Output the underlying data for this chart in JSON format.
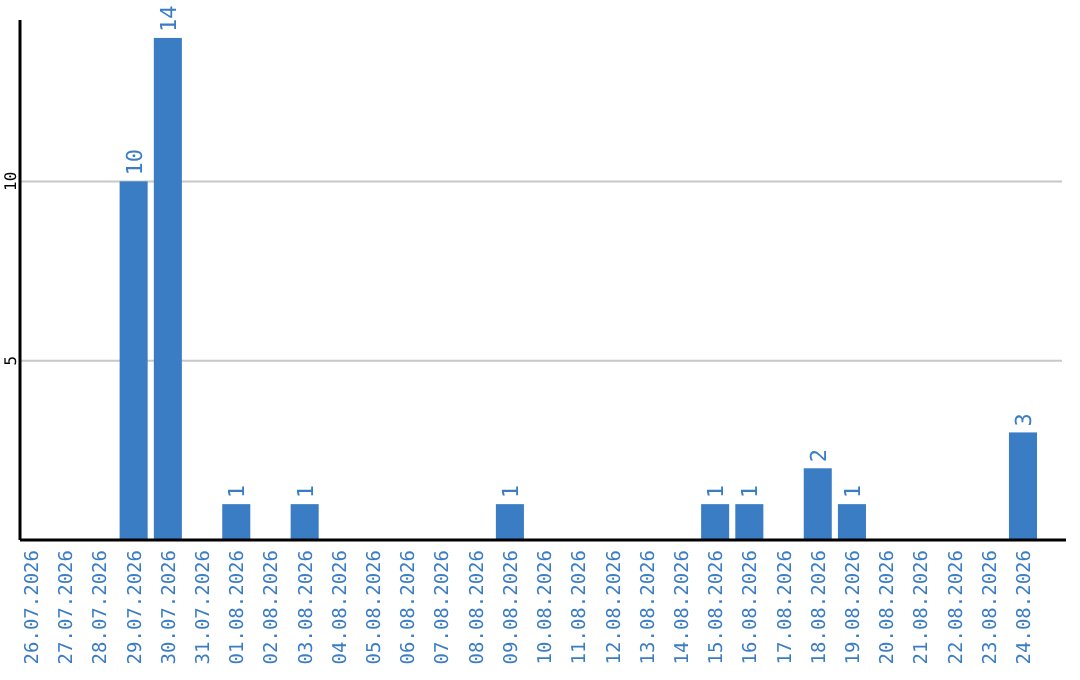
{
  "chart_data": {
    "type": "bar",
    "categories": [
      "26.07.2026",
      "27.07.2026",
      "28.07.2026",
      "29.07.2026",
      "30.07.2026",
      "31.07.2026",
      "01.08.2026",
      "02.08.2026",
      "03.08.2026",
      "04.08.2026",
      "05.08.2026",
      "06.08.2026",
      "07.08.2026",
      "08.08.2026",
      "09.08.2026",
      "10.08.2026",
      "11.08.2026",
      "12.08.2026",
      "13.08.2026",
      "14.08.2026",
      "15.08.2026",
      "16.08.2026",
      "17.08.2026",
      "18.08.2026",
      "19.08.2026",
      "20.08.2026",
      "21.08.2026",
      "22.08.2026",
      "23.08.2026",
      "24.08.2026"
    ],
    "values": [
      0,
      0,
      0,
      10,
      14,
      0,
      1,
      0,
      1,
      0,
      0,
      0,
      0,
      0,
      1,
      0,
      0,
      0,
      0,
      0,
      1,
      1,
      0,
      2,
      1,
      0,
      0,
      0,
      0,
      3
    ],
    "value_labels": [
      null,
      null,
      null,
      "10",
      "14",
      null,
      "1",
      null,
      "1",
      null,
      null,
      null,
      null,
      null,
      "1",
      null,
      null,
      null,
      null,
      null,
      "1",
      "1",
      null,
      "2",
      "1",
      null,
      null,
      null,
      null,
      "3"
    ],
    "color": "#3b7dc4",
    "ylim": [
      0,
      14.5
    ],
    "yticks": [
      5,
      10
    ],
    "grid": "y"
  }
}
